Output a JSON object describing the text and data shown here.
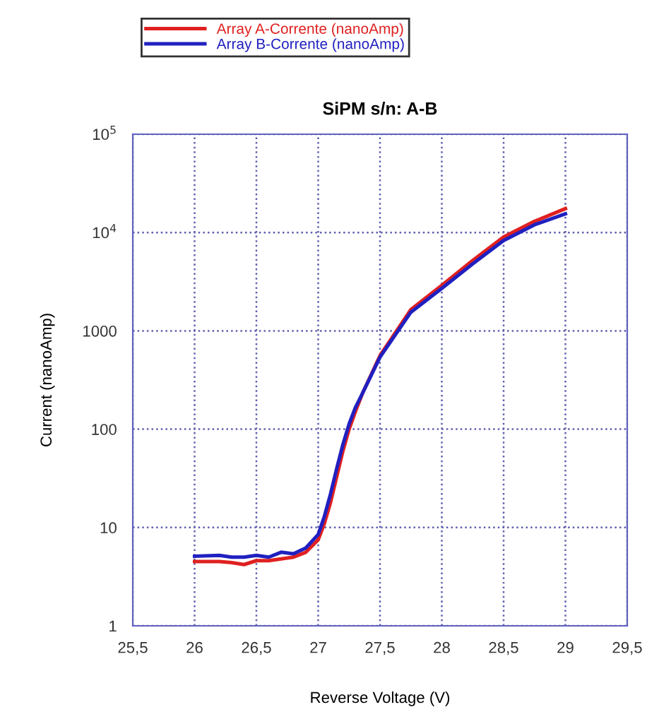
{
  "chart_data": {
    "type": "line",
    "title": "SiPM s/n: A-B",
    "xlabel": "Reverse Voltage (V)",
    "ylabel": "Current (nanoAmp)",
    "log": "y",
    "grid": true,
    "legend": "top left",
    "line_style": "solid",
    "marker": "none",
    "xlim": [
      25.5,
      29.5
    ],
    "xticks": [
      {
        "value": 25.5,
        "label": "25,5"
      },
      26,
      {
        "value": 26.5,
        "label": "26,5"
      },
      27,
      {
        "value": 27.5,
        "label": "27,5"
      },
      28,
      {
        "value": 28.5,
        "label": "28,5"
      },
      29,
      {
        "value": 29.5,
        "label": "29,5"
      }
    ],
    "ylim": [
      1,
      100000
    ],
    "yticks": [
      1,
      10,
      100,
      1000,
      {
        "value": 10000,
        "label": "10$^{4}$"
      },
      {
        "value": 100000,
        "label": "10$^{5}$"
      }
    ],
    "series": [
      {
        "name": "Array A-Corrente (nanoAmp)",
        "color": "#e02020",
        "x": [
          26,
          26.2,
          26.3,
          26.4,
          26.5,
          26.6,
          26.7,
          26.8,
          26.9,
          27.0,
          27.05,
          27.1,
          27.15,
          27.2,
          27.25,
          27.3,
          27.36,
          27.5,
          27.75,
          28.0,
          28.25,
          28.5,
          28.75,
          29.0
        ],
        "values": [
          4.5,
          4.5,
          4.4,
          4.2,
          4.6,
          4.6,
          4.8,
          5.0,
          5.6,
          7.5,
          11,
          18,
          33,
          60,
          100,
          150,
          234,
          560,
          1650,
          2900,
          5200,
          9000,
          13000,
          17500
        ]
      },
      {
        "name": "Array B-Corrente (nanoAmp)",
        "color": "#2020c0",
        "x": [
          26,
          26.2,
          26.3,
          26.4,
          26.5,
          26.6,
          26.7,
          26.8,
          26.9,
          27.0,
          27.05,
          27.1,
          27.15,
          27.2,
          27.25,
          27.3,
          27.36,
          27.5,
          27.75,
          28.0,
          28.25,
          28.5,
          28.75,
          29.0
        ],
        "values": [
          5.1,
          5.2,
          5.0,
          5.0,
          5.2,
          5.0,
          5.6,
          5.4,
          6.2,
          8.5,
          13,
          22,
          40,
          70,
          113,
          165,
          234,
          540,
          1550,
          2700,
          4800,
          8300,
          12000,
          15500
        ]
      }
    ]
  }
}
